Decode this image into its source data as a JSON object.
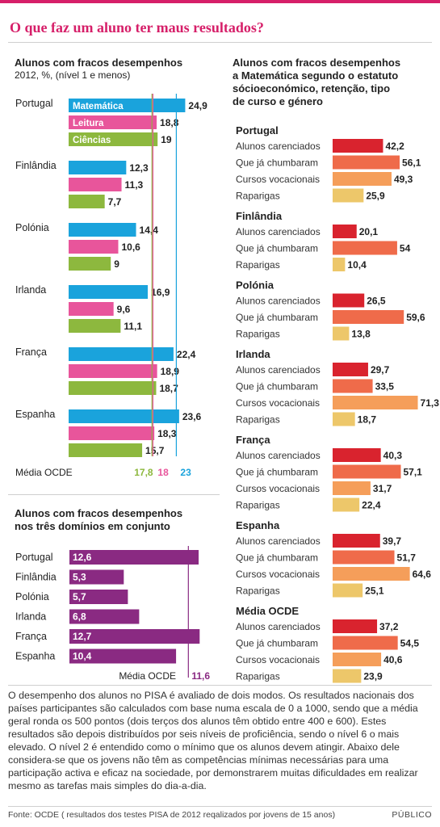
{
  "title": "O que faz um aluno ter maus resultados?",
  "colors": {
    "accent": "#d61f69",
    "matematica": "#1aa3dc",
    "leitura": "#e8559b",
    "ciencias": "#8db83e",
    "combined": "#8a2a82",
    "carenciados": "#d9232e",
    "chumbaram": "#ef6b4a",
    "vocacionais": "#f59e5a",
    "raparigas": "#edc76a"
  },
  "left_top": {
    "title": "Alunos com fracos desempenhos",
    "subtitle": "2012, %,  (nível 1 e menos)"
  },
  "left_bottom": {
    "title": "Alunos com fracos desempenhos\nnos três domínios em conjunto",
    "media_label": "Média OCDE"
  },
  "right": {
    "title": "Alunos com fracos desempenhos\na Matemática segundo o estatuto\nsócioeconómico, retenção, tipo\nde curso e género"
  },
  "note": "O desempenho dos alunos no PISA é avaliado de dois modos. Os resultados nacionais dos países participantes são calculados com base numa escala de 0 a 1000, sendo que a média geral ronda os 500 pontos (dois terços dos alunos têm obtido entre 400 e 600). Estes resultados são depois distribuídos por seis níveis de proficiência, sendo o nível 6 o mais elevado. O nível 2 é entendido como o mínimo que os alunos devem atingir. Abaixo dele considera-se que os jovens não têm as competências mínimas necessárias para uma participação activa e eficaz na sociedade, por demonstrarem muitas dificuldades em realizar mesmo as tarefas mais simples do dia-a-dia.",
  "footer": "Fonte: OCDE ( resultados dos testes PISA de 2012 reqalizados por jovens de 15 anos)",
  "brand": "PÚBLICO",
  "chart_data": [
    {
      "type": "bar",
      "orientation": "horizontal",
      "title": "Alunos com fracos desempenhos",
      "subtitle": "2012, %,  (nível 1 e menos)",
      "categories": [
        "Portugal",
        "Finlândia",
        "Polónia",
        "Irlanda",
        "França",
        "Espanha"
      ],
      "series": [
        {
          "name": "Matemática",
          "values": [
            24.9,
            12.3,
            14.4,
            16.9,
            22.4,
            23.6
          ],
          "labels": [
            "24,9",
            "12,3",
            "14,4",
            "16,9",
            "22,4",
            "23,6"
          ]
        },
        {
          "name": "Leitura",
          "values": [
            18.8,
            11.3,
            10.6,
            9.6,
            18.9,
            18.3
          ],
          "labels": [
            "18,8",
            "11,3",
            "10,6",
            "9,6",
            "18,9",
            "18,3"
          ]
        },
        {
          "name": "Ciências",
          "values": [
            19,
            7.7,
            9,
            11.1,
            18.7,
            15.7
          ],
          "labels": [
            "19",
            "7,7",
            "9",
            "11,1",
            "18,7",
            "15,7"
          ]
        }
      ],
      "reference": {
        "label": "Média OCDE",
        "values": [
          17.8,
          18,
          23
        ],
        "labels": [
          "17,8",
          "18",
          "23"
        ]
      }
    },
    {
      "type": "bar",
      "orientation": "horizontal",
      "title": "Alunos com fracos desempenhos nos três domínios em conjunto",
      "categories": [
        "Portugal",
        "Finlândia",
        "Polónia",
        "Irlanda",
        "França",
        "Espanha"
      ],
      "values": [
        12.6,
        5.3,
        5.7,
        6.8,
        12.7,
        10.4
      ],
      "labels": [
        "12,6",
        "5,3",
        "5,7",
        "6,8",
        "12,7",
        "10,4"
      ],
      "reference": {
        "label": "Média OCDE",
        "value": 11.6,
        "value_label": "11,6"
      }
    },
    {
      "type": "bar",
      "orientation": "horizontal",
      "title": "Alunos com fracos desempenhos a Matemática segundo o estatuto sócioeconómico, retenção, tipo de curso e género",
      "groups": [
        {
          "name": "Portugal",
          "items": [
            {
              "label": "Alunos carenciados",
              "value": 42.2,
              "value_label": "42,2",
              "color_key": "carenciados"
            },
            {
              "label": "Que já chumbaram",
              "value": 56.1,
              "value_label": "56,1",
              "color_key": "chumbaram"
            },
            {
              "label": "Cursos vocacionais",
              "value": 49.3,
              "value_label": "49,3",
              "color_key": "vocacionais"
            },
            {
              "label": "Raparigas",
              "value": 25.9,
              "value_label": "25,9",
              "color_key": "raparigas"
            }
          ]
        },
        {
          "name": "Finlândia",
          "items": [
            {
              "label": "Alunos carenciados",
              "value": 20.1,
              "value_label": "20,1",
              "color_key": "carenciados"
            },
            {
              "label": "Que já chumbaram",
              "value": 54,
              "value_label": "54",
              "color_key": "chumbaram"
            },
            {
              "label": "Raparigas",
              "value": 10.4,
              "value_label": "10,4",
              "color_key": "raparigas"
            }
          ]
        },
        {
          "name": "Polónia",
          "items": [
            {
              "label": "Alunos carenciados",
              "value": 26.5,
              "value_label": "26,5",
              "color_key": "carenciados"
            },
            {
              "label": "Que já chumbaram",
              "value": 59.6,
              "value_label": "59,6",
              "color_key": "chumbaram"
            },
            {
              "label": "Raparigas",
              "value": 13.8,
              "value_label": "13,8",
              "color_key": "raparigas"
            }
          ]
        },
        {
          "name": "Irlanda",
          "items": [
            {
              "label": "Alunos carenciados",
              "value": 29.7,
              "value_label": "29,7",
              "color_key": "carenciados"
            },
            {
              "label": "Que já chumbaram",
              "value": 33.5,
              "value_label": "33,5",
              "color_key": "chumbaram"
            },
            {
              "label": "Cursos vocacionais",
              "value": 71.3,
              "value_label": "71,3",
              "color_key": "vocacionais"
            },
            {
              "label": "Raparigas",
              "value": 18.7,
              "value_label": "18,7",
              "color_key": "raparigas"
            }
          ]
        },
        {
          "name": "França",
          "items": [
            {
              "label": "Alunos carenciados",
              "value": 40.3,
              "value_label": "40,3",
              "color_key": "carenciados"
            },
            {
              "label": "Que já chumbaram",
              "value": 57.1,
              "value_label": "57,1",
              "color_key": "chumbaram"
            },
            {
              "label": "Cursos vocacionais",
              "value": 31.7,
              "value_label": "31,7",
              "color_key": "vocacionais"
            },
            {
              "label": "Raparigas",
              "value": 22.4,
              "value_label": "22,4",
              "color_key": "raparigas"
            }
          ]
        },
        {
          "name": "Espanha",
          "items": [
            {
              "label": "Alunos carenciados",
              "value": 39.7,
              "value_label": "39,7",
              "color_key": "carenciados"
            },
            {
              "label": "Que já chumbaram",
              "value": 51.7,
              "value_label": "51,7",
              "color_key": "chumbaram"
            },
            {
              "label": "Cursos vocacionais",
              "value": 64.6,
              "value_label": "64,6",
              "color_key": "vocacionais"
            },
            {
              "label": "Raparigas",
              "value": 25.1,
              "value_label": "25,1",
              "color_key": "raparigas"
            }
          ]
        },
        {
          "name": "Média OCDE",
          "items": [
            {
              "label": "Alunos carenciados",
              "value": 37.2,
              "value_label": "37,2",
              "color_key": "carenciados"
            },
            {
              "label": "Que já chumbaram",
              "value": 54.5,
              "value_label": "54,5",
              "color_key": "chumbaram"
            },
            {
              "label": "Cursos vocacionais",
              "value": 40.6,
              "value_label": "40,6",
              "color_key": "vocacionais"
            },
            {
              "label": "Raparigas",
              "value": 23.9,
              "value_label": "23,9",
              "color_key": "raparigas"
            }
          ]
        }
      ]
    }
  ]
}
